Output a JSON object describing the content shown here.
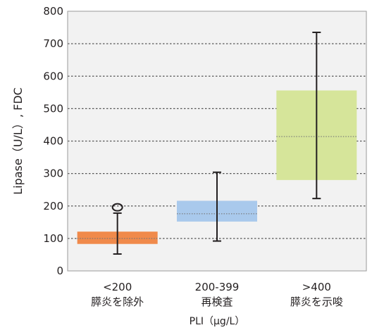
{
  "chart_data": {
    "type": "box",
    "ylabel": "Lipase（U/L）, FDC",
    "xlabel": "PLI（μg/L）",
    "ylim": [
      0,
      800
    ],
    "yticks": [
      0,
      100,
      200,
      300,
      400,
      500,
      600,
      700,
      800
    ],
    "grid": true,
    "categories": [
      {
        "line1": "<200",
        "line2": "膵炎を除外"
      },
      {
        "line1": "200-399",
        "line2": "再検査"
      },
      {
        "line1": ">400",
        "line2": "膵炎を示唆"
      }
    ],
    "boxes": [
      {
        "q1": 83,
        "median": 100,
        "q3": 121,
        "whisker_low": 52,
        "whisker_high": 178,
        "outliers": [
          196
        ],
        "color": "#f08a4b"
      },
      {
        "q1": 152,
        "median": 176,
        "q3": 216,
        "whisker_low": 92,
        "whisker_high": 304,
        "outliers": [],
        "color": "#a9c9ec"
      },
      {
        "q1": 280,
        "median": 414,
        "q3": 556,
        "whisker_low": 223,
        "whisker_high": 735,
        "outliers": [],
        "color": "#d6e59a"
      }
    ],
    "colors": {
      "plot_background": "#f2f2f2",
      "grid": "#555555",
      "axis": "#231f20"
    }
  }
}
